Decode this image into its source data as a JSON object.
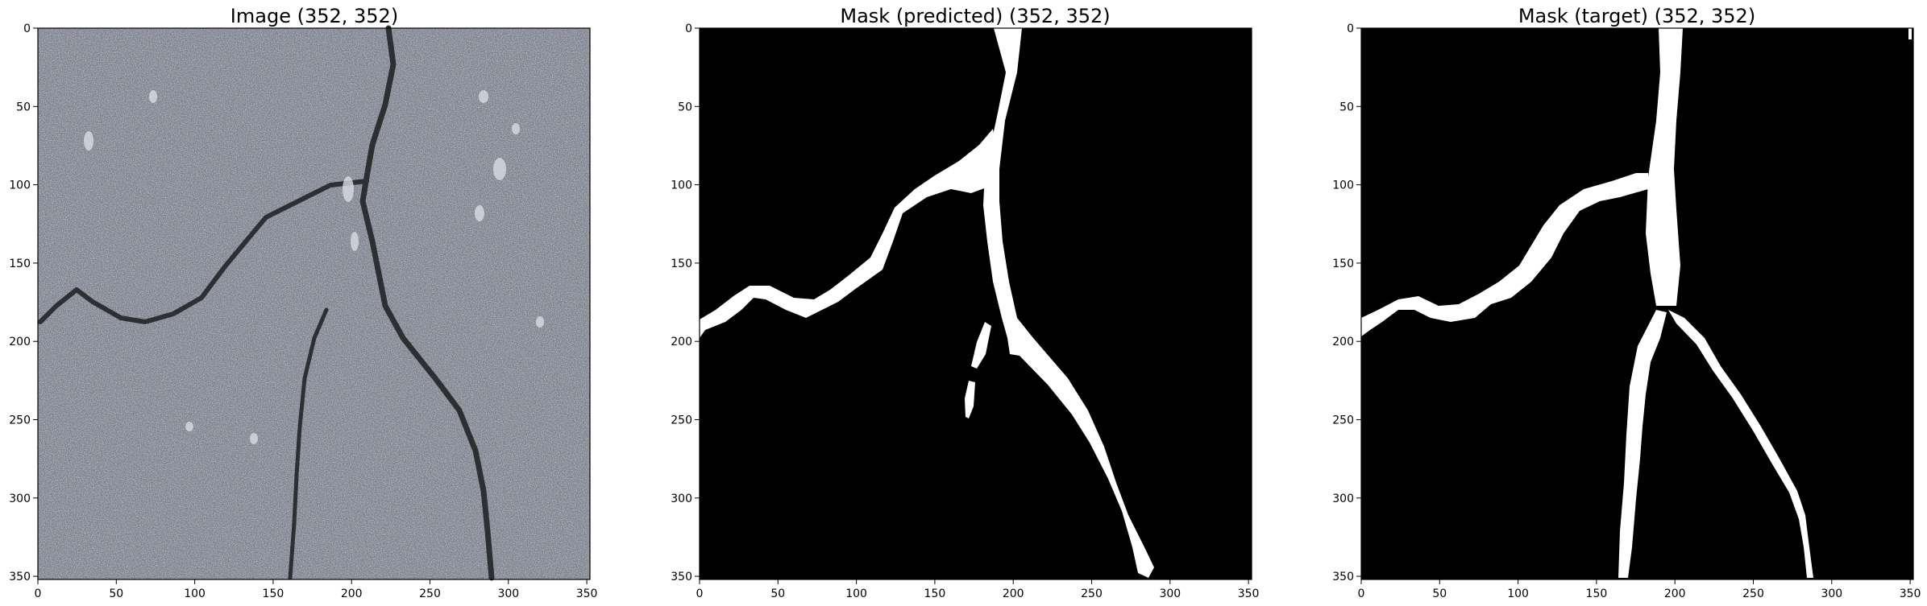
{
  "panels": [
    {
      "title": "Image (352, 352)",
      "kind": "photo",
      "xticks": [
        0,
        50,
        100,
        150,
        200,
        250,
        300,
        350
      ],
      "yticks": [
        0,
        50,
        100,
        150,
        200,
        250,
        300,
        350
      ],
      "extent": [
        0,
        352
      ]
    },
    {
      "title": "Mask (predicted) (352, 352)",
      "kind": "mask",
      "xticks": [
        0,
        50,
        100,
        150,
        200,
        250,
        300,
        350
      ],
      "yticks": [
        0,
        50,
        100,
        150,
        200,
        250,
        300,
        350
      ],
      "extent": [
        0,
        352
      ]
    },
    {
      "title": "Mask (target) (352, 352)",
      "kind": "mask",
      "xticks": [
        0,
        50,
        100,
        150,
        200,
        250,
        300,
        350
      ],
      "yticks": [
        0,
        50,
        100,
        150,
        200,
        250,
        300,
        350
      ],
      "extent": [
        0,
        352
      ]
    }
  ],
  "colors": {
    "asphalt": "#7a7f8a",
    "crack": "#2e2f33",
    "mask_bg": "#000000",
    "mask_fg": "#ffffff"
  }
}
